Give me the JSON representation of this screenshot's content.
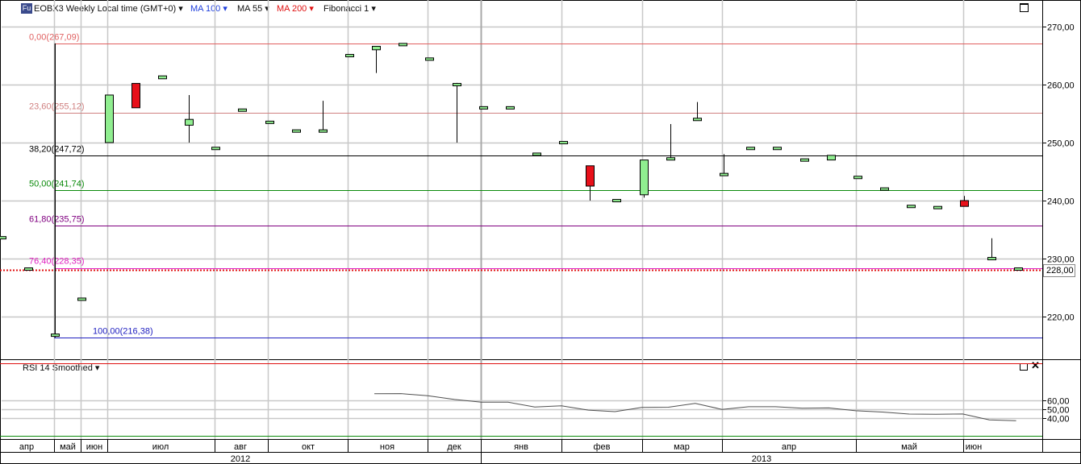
{
  "header": {
    "badge": "Fu",
    "instrument": "EOBX3 Weekly Local time (GMT+0)",
    "ma100": "MA 100",
    "ma55": "MA 55",
    "ma200": "MA 200",
    "fibonacci": "Fibonacci 1",
    "ma100_color": "#1f3fdc",
    "ma200_color": "#e01010"
  },
  "rsi_panel": {
    "label": "RSI 14 Smoothed"
  },
  "price_marker": "228,00",
  "colors": {
    "up": "#90ee90",
    "down": "#e8101a",
    "grid": "#c8c8c8"
  },
  "chart_data": [
    {
      "type": "candlestick",
      "ylim": [
        213,
        275
      ],
      "yticks": [
        220,
        230,
        240,
        250,
        260,
        270
      ],
      "ytick_labels": [
        "220,00",
        "230,00",
        "240,00",
        "250,00",
        "260,00",
        "270,00"
      ],
      "month_labels": [
        "апр",
        "май",
        "июн",
        "июл",
        "авг",
        "окт",
        "ноя",
        "дек",
        "янв",
        "фев",
        "мар",
        "апр",
        "май",
        "июн"
      ],
      "year_labels": [
        "2012",
        "2013"
      ],
      "candles": [
        {
          "o": 233.8,
          "h": 233.8,
          "l": 233.8,
          "c": 233.8
        },
        {
          "o": 228.2,
          "h": 228.2,
          "l": 228.2,
          "c": 228.4
        },
        {
          "o": 216.8,
          "h": 267.1,
          "l": 216.4,
          "c": 217.0
        },
        {
          "o": 223.0,
          "h": 223.0,
          "l": 223.0,
          "c": 223.2
        },
        {
          "o": 250.0,
          "h": 258.2,
          "l": 250.0,
          "c": 258.2
        },
        {
          "o": 260.2,
          "h": 260.2,
          "l": 256.0,
          "c": 256.0
        },
        {
          "o": 261.0,
          "h": 261.5,
          "l": 261.0,
          "c": 261.5
        },
        {
          "o": 253.0,
          "h": 258.2,
          "l": 250.0,
          "c": 254.0
        },
        {
          "o": 249.0,
          "h": 249.0,
          "l": 249.0,
          "c": 249.2
        },
        {
          "o": 255.6,
          "h": 255.6,
          "l": 255.6,
          "c": 255.8
        },
        {
          "o": 253.5,
          "h": 253.5,
          "l": 253.5,
          "c": 253.7
        },
        {
          "o": 252.0,
          "h": 252.0,
          "l": 252.0,
          "c": 252.2
        },
        {
          "o": 252.0,
          "h": 257.2,
          "l": 252.0,
          "c": 252.2
        },
        {
          "o": 265.0,
          "h": 265.0,
          "l": 265.0,
          "c": 265.2
        },
        {
          "o": 266.0,
          "h": 266.6,
          "l": 262.0,
          "c": 266.6
        },
        {
          "o": 267.0,
          "h": 267.1,
          "l": 267.0,
          "c": 267.1
        },
        {
          "o": 264.4,
          "h": 264.4,
          "l": 264.4,
          "c": 264.6
        },
        {
          "o": 260.0,
          "h": 260.3,
          "l": 250.0,
          "c": 260.2
        },
        {
          "o": 256.0,
          "h": 256.0,
          "l": 256.0,
          "c": 256.2
        },
        {
          "o": 256.0,
          "h": 256.0,
          "l": 256.0,
          "c": 256.2
        },
        {
          "o": 248.0,
          "h": 248.0,
          "l": 248.0,
          "c": 248.2
        },
        {
          "o": 250.0,
          "h": 250.0,
          "l": 250.0,
          "c": 250.2
        },
        {
          "o": 246.0,
          "h": 246.0,
          "l": 240.0,
          "c": 242.5
        },
        {
          "o": 240.0,
          "h": 240.0,
          "l": 240.0,
          "c": 240.2
        },
        {
          "o": 241.0,
          "h": 247.0,
          "l": 240.5,
          "c": 247.0
        },
        {
          "o": 247.2,
          "h": 253.2,
          "l": 247.2,
          "c": 247.4
        },
        {
          "o": 254.0,
          "h": 257.0,
          "l": 254.0,
          "c": 254.2
        },
        {
          "o": 244.5,
          "h": 248.0,
          "l": 244.5,
          "c": 244.7
        },
        {
          "o": 249.0,
          "h": 249.0,
          "l": 249.0,
          "c": 249.2
        },
        {
          "o": 249.0,
          "h": 249.0,
          "l": 249.0,
          "c": 249.2
        },
        {
          "o": 247.0,
          "h": 247.0,
          "l": 247.0,
          "c": 247.2
        },
        {
          "o": 247.0,
          "h": 247.8,
          "l": 247.0,
          "c": 247.8
        },
        {
          "o": 244.0,
          "h": 244.0,
          "l": 244.0,
          "c": 244.2
        },
        {
          "o": 242.0,
          "h": 242.0,
          "l": 242.0,
          "c": 242.2
        },
        {
          "o": 239.0,
          "h": 239.0,
          "l": 239.0,
          "c": 239.2
        },
        {
          "o": 238.8,
          "h": 238.8,
          "l": 238.8,
          "c": 239.0
        },
        {
          "o": 240.0,
          "h": 240.8,
          "l": 239.0,
          "c": 239.0
        },
        {
          "o": 230.0,
          "h": 233.5,
          "l": 230.0,
          "c": 230.2
        },
        {
          "o": 228.3,
          "h": 228.3,
          "l": 228.3,
          "c": 228.4
        }
      ],
      "fibonacci": [
        {
          "label": "0,00(267,09)",
          "value": 267.09,
          "color": "#e06060"
        },
        {
          "label": "23,60(255,12)",
          "value": 255.12,
          "color": "#d08080"
        },
        {
          "label": "38,20(247,72)",
          "value": 247.72,
          "color": "#000000"
        },
        {
          "label": "50,00(241,74)",
          "value": 241.74,
          "color": "#0a8a0a"
        },
        {
          "label": "61,80(235,75)",
          "value": 235.75,
          "color": "#800080"
        },
        {
          "label": "76,40(228,35)",
          "value": 228.35,
          "color": "#e020c0"
        },
        {
          "label": "100,00(216,38)",
          "value": 216.38,
          "color": "#2020c0"
        }
      ],
      "last_price": 228.0
    },
    {
      "type": "line",
      "title": "RSI 14 Smoothed",
      "ylim": [
        29,
        72
      ],
      "yticks": [
        40,
        50,
        60
      ],
      "ytick_labels": [
        "40,00",
        "50,00",
        "60,00"
      ],
      "series": [
        {
          "values": [
            67.5,
            67.6,
            65.2,
            61.0,
            58.0,
            57.9,
            52.5,
            53.8,
            49.0,
            47.3,
            52.0,
            52.3,
            56.6,
            49.8,
            52.8,
            52.8,
            51.2,
            51.5,
            48.3,
            46.8,
            44.5,
            44.3,
            44.6,
            38.0,
            37.0
          ]
        }
      ]
    }
  ]
}
